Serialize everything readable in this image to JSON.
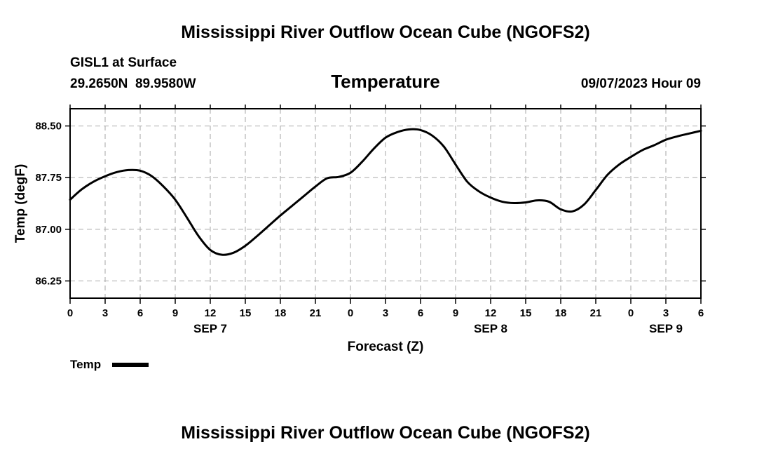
{
  "header": {
    "title": "Mississippi River Outflow Ocean Cube (NGOFS2)",
    "station": "GISL1 at Surface",
    "coordinates": "29.2650N  89.9580W",
    "parameter": "Temperature",
    "datetime": "09/07/2023 Hour 09"
  },
  "footer": {
    "title": "Mississippi River Outflow Ocean Cube (NGOFS2)"
  },
  "legend": {
    "label": "Temp"
  },
  "chart_data": {
    "type": "line",
    "title": "Temperature",
    "xlabel": "Forecast (Z)",
    "ylabel": "Temp (degF)",
    "xlim": [
      0,
      54
    ],
    "ylim": [
      86.0,
      88.75
    ],
    "grid": true,
    "legend_position": "bottom-left",
    "x_tick_labels": [
      "0",
      "3",
      "6",
      "9",
      "12",
      "15",
      "18",
      "21",
      "0",
      "3",
      "6",
      "9",
      "12",
      "15",
      "18",
      "21",
      "0",
      "3",
      "6"
    ],
    "x_tick_hours": [
      0,
      3,
      6,
      9,
      12,
      15,
      18,
      21,
      24,
      27,
      30,
      33,
      36,
      39,
      42,
      45,
      48,
      51,
      54
    ],
    "date_labels": [
      {
        "label": "SEP 7",
        "hour": 12
      },
      {
        "label": "SEP 8",
        "hour": 36
      },
      {
        "label": "SEP 9",
        "hour": 51
      }
    ],
    "y_ticks": [
      86.25,
      87.0,
      87.75,
      88.5
    ],
    "y_tick_labels": [
      "86.25",
      "87.00",
      "87.75",
      "88.50"
    ],
    "series": [
      {
        "name": "Temp",
        "color": "#000000",
        "x": [
          0,
          1,
          2,
          3,
          4,
          5,
          6,
          7,
          8,
          9,
          10,
          11,
          12,
          13,
          14,
          15,
          16,
          17,
          18,
          19,
          20,
          21,
          22,
          23,
          24,
          25,
          26,
          27,
          28,
          29,
          30,
          31,
          32,
          33,
          34,
          35,
          36,
          37,
          38,
          39,
          40,
          41,
          42,
          43,
          44,
          45,
          46,
          47,
          48,
          49,
          50,
          51,
          52,
          53,
          54
        ],
        "values": [
          87.43,
          87.58,
          87.69,
          87.77,
          87.83,
          87.86,
          87.85,
          87.77,
          87.62,
          87.43,
          87.17,
          86.9,
          86.7,
          86.63,
          86.66,
          86.76,
          86.9,
          87.05,
          87.2,
          87.34,
          87.48,
          87.62,
          87.74,
          87.76,
          87.82,
          87.98,
          88.17,
          88.33,
          88.41,
          88.45,
          88.44,
          88.36,
          88.2,
          87.94,
          87.69,
          87.55,
          87.46,
          87.4,
          87.38,
          87.39,
          87.42,
          87.4,
          87.29,
          87.26,
          87.36,
          87.57,
          87.79,
          87.94,
          88.05,
          88.15,
          88.22,
          88.3,
          88.35,
          88.39,
          88.43
        ]
      }
    ]
  }
}
